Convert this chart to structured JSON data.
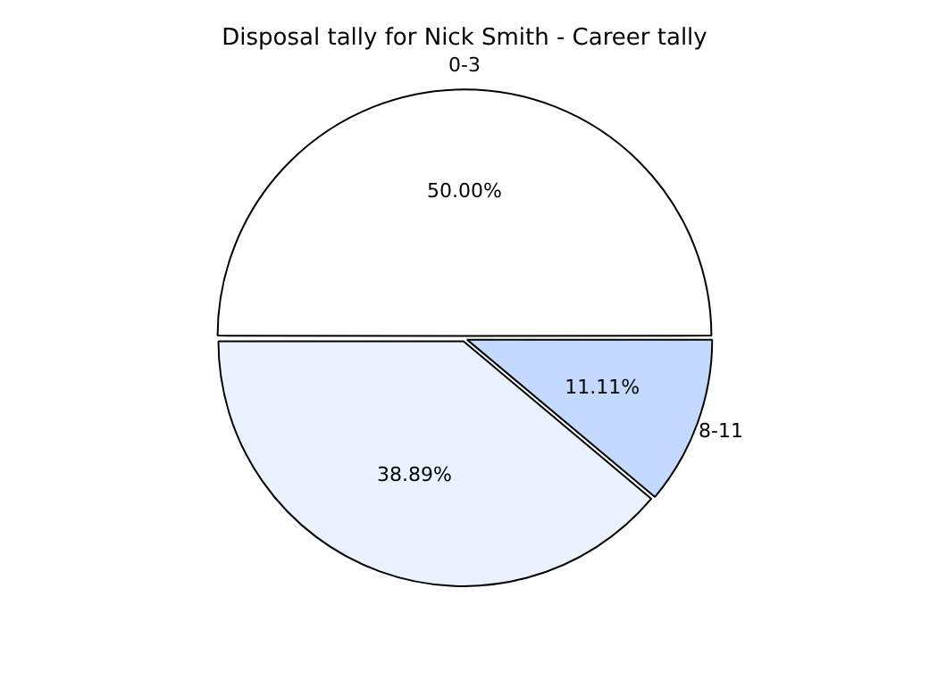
{
  "chart_data": {
    "type": "pie",
    "title": "Disposal tally for Nick Smith - Career tally",
    "categories": [
      "0-3",
      "8-11",
      null
    ],
    "values": [
      50,
      11.11,
      38.89
    ],
    "value_labels": [
      "50.00%",
      "11.11%",
      "38.89%"
    ],
    "colors": [
      "#ffffff",
      "#c4d9ff",
      "#eaf1ff"
    ],
    "legend": false
  }
}
